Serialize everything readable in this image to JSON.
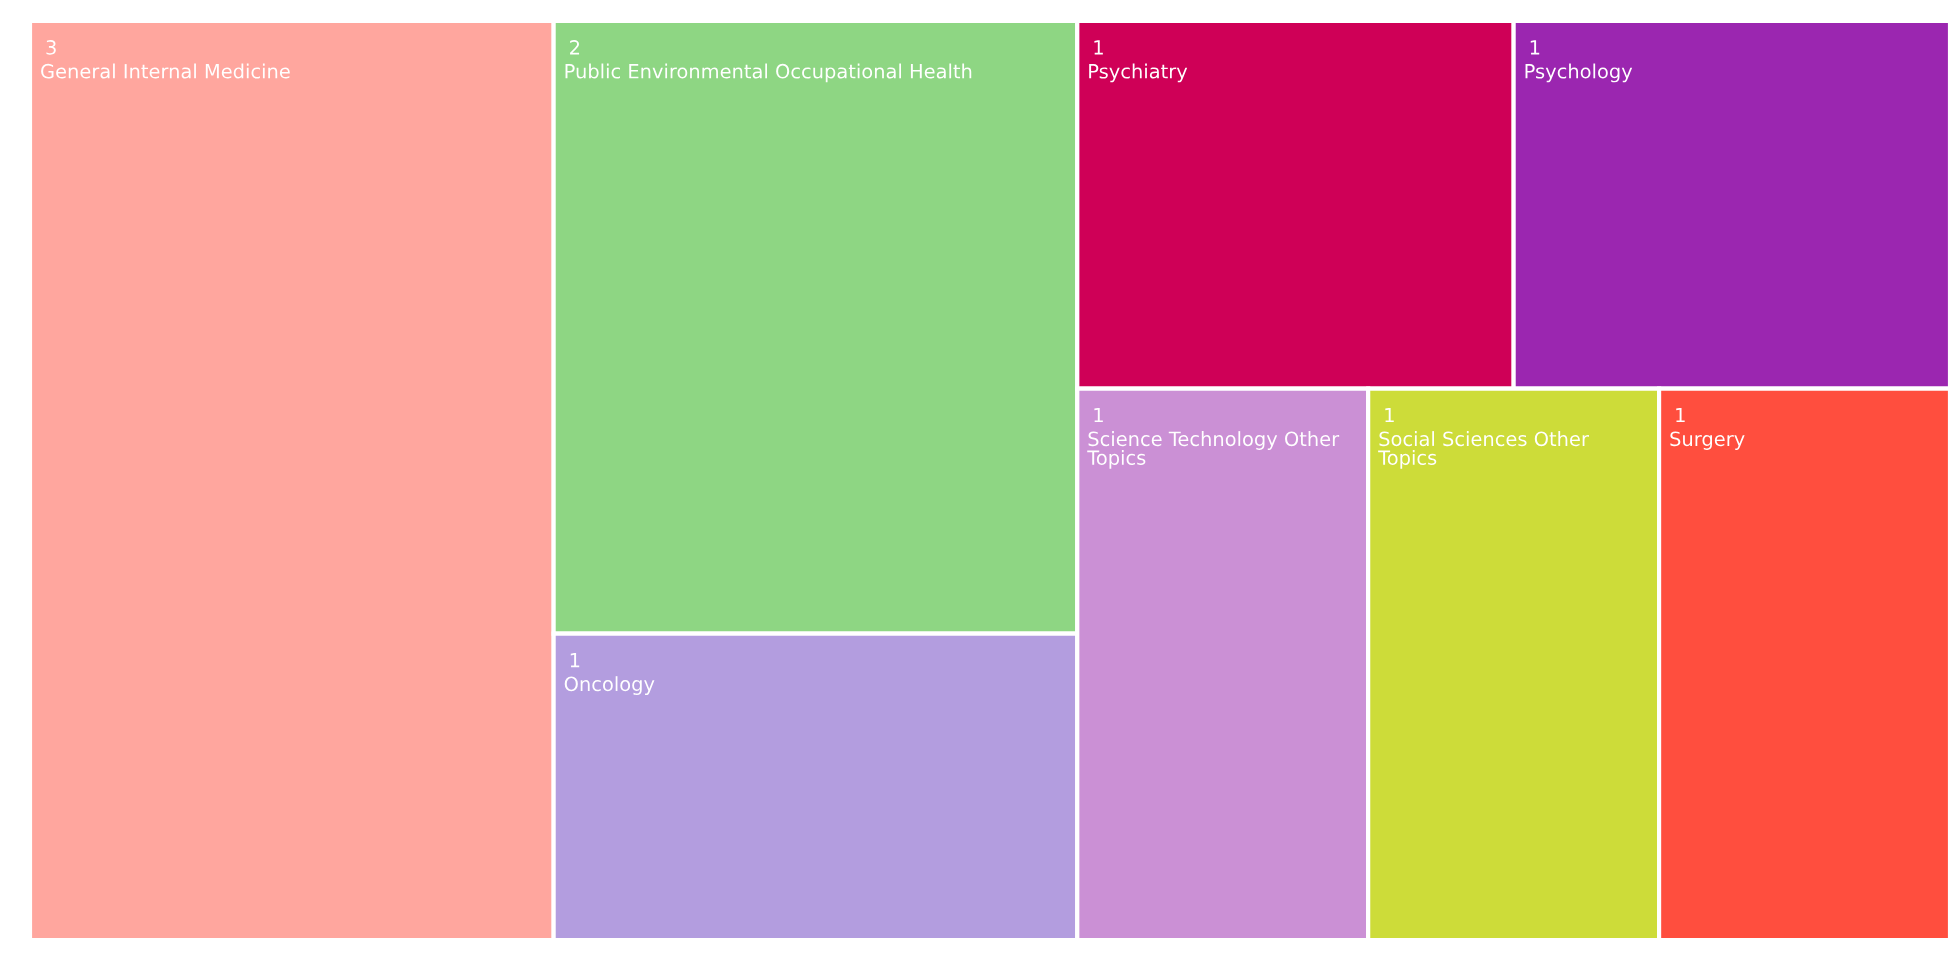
{
  "chart_data": {
    "type": "other",
    "categories": [
      "General Internal Medicine",
      "Public Environmental Occupational Health",
      "Oncology",
      "Psychiatry",
      "Psychology",
      "Science Technology Other Topics",
      "Social Sciences Other Topics",
      "Surgery"
    ],
    "values": [
      3,
      2,
      1,
      1,
      1,
      1,
      1,
      1
    ],
    "colors": [
      "#ffa69e",
      "#8ed683",
      "#b39ddf",
      "#cf0057",
      "#9b26b0",
      "#cb90d5",
      "#cddc39",
      "#ff4e3e"
    ],
    "data_labels": true
  }
}
